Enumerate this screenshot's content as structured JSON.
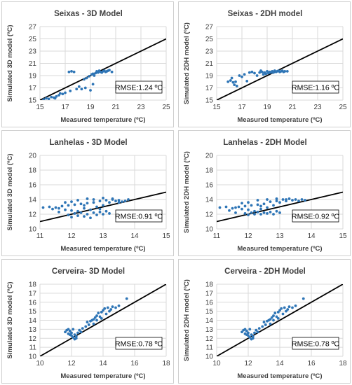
{
  "chart_data": [
    {
      "type": "scatter",
      "title": "Seixas - 3D Model",
      "xlabel": "Measured temperature (ºC)",
      "ylabel": "Simulated 3D model (ºC)",
      "xlim": [
        15,
        25
      ],
      "ylim": [
        15,
        27
      ],
      "xticks": [
        "15",
        "17",
        "19",
        "21",
        "23",
        "25"
      ],
      "yticks": [
        "15",
        "17",
        "19",
        "21",
        "23",
        "25",
        "27"
      ],
      "annotation": "RMSE:1.24 ºC",
      "line": [
        [
          15,
          15
        ],
        [
          25,
          25
        ]
      ],
      "points": [
        [
          15.3,
          15.1
        ],
        [
          15.5,
          15.3
        ],
        [
          15.7,
          15.2
        ],
        [
          15.9,
          15.5
        ],
        [
          16.1,
          15.4
        ],
        [
          16.3,
          15.6
        ],
        [
          16.5,
          15.8
        ],
        [
          16.2,
          15.3
        ],
        [
          16.8,
          16.0
        ],
        [
          17.0,
          16.2
        ],
        [
          16.6,
          16.1
        ],
        [
          17.3,
          19.6
        ],
        [
          17.5,
          19.7
        ],
        [
          17.7,
          19.6
        ],
        [
          17.4,
          16.5
        ],
        [
          17.9,
          16.8
        ],
        [
          18.1,
          17.2
        ],
        [
          18.3,
          16.8
        ],
        [
          18.6,
          17.0
        ],
        [
          18.5,
          18.4
        ],
        [
          18.7,
          18.6
        ],
        [
          18.9,
          18.9
        ],
        [
          19.1,
          19.2
        ],
        [
          19.0,
          16.6
        ],
        [
          19.2,
          17.6
        ],
        [
          19.3,
          19.0
        ],
        [
          19.4,
          19.4
        ],
        [
          19.6,
          19.5
        ],
        [
          19.8,
          19.6
        ],
        [
          20.0,
          19.7
        ],
        [
          19.7,
          19.8
        ],
        [
          19.9,
          19.5
        ],
        [
          20.1,
          19.8
        ],
        [
          20.3,
          19.7
        ],
        [
          20.5,
          19.9
        ],
        [
          20.7,
          19.6
        ],
        [
          19.5,
          19.7
        ],
        [
          20.2,
          19.6
        ],
        [
          19.2,
          19.3
        ],
        [
          20.4,
          19.8
        ]
      ]
    },
    {
      "type": "scatter",
      "title": "Seixas - 2DH model",
      "xlabel": "Measured temperature (ºC)",
      "ylabel": "Simulated 2DH model (ºC)",
      "xlim": [
        15,
        25
      ],
      "ylim": [
        15,
        27
      ],
      "xticks": [
        "15",
        "17",
        "19",
        "21",
        "23",
        "25"
      ],
      "yticks": [
        "15",
        "17",
        "19",
        "21",
        "23",
        "25",
        "27"
      ],
      "annotation": "RMSE:1.16 ºC",
      "line": [
        [
          15,
          15
        ],
        [
          25,
          25
        ]
      ],
      "points": [
        [
          15.9,
          18.0
        ],
        [
          16.1,
          18.2
        ],
        [
          16.3,
          17.9
        ],
        [
          16.5,
          18.0
        ],
        [
          16.2,
          18.6
        ],
        [
          16.4,
          17.5
        ],
        [
          16.6,
          17.3
        ],
        [
          16.8,
          19.0
        ],
        [
          17.0,
          18.8
        ],
        [
          17.2,
          19.2
        ],
        [
          17.4,
          18.1
        ],
        [
          17.6,
          19.5
        ],
        [
          17.8,
          19.6
        ],
        [
          18.0,
          19.4
        ],
        [
          18.2,
          19.0
        ],
        [
          18.4,
          19.5
        ],
        [
          18.6,
          19.6
        ],
        [
          18.8,
          19.5
        ],
        [
          19.0,
          19.7
        ],
        [
          19.2,
          19.6
        ],
        [
          19.4,
          19.7
        ],
        [
          19.6,
          19.8
        ],
        [
          19.8,
          19.7
        ],
        [
          20.0,
          19.6
        ],
        [
          20.2,
          19.8
        ],
        [
          20.4,
          19.7
        ],
        [
          20.6,
          19.7
        ],
        [
          19.1,
          19.4
        ],
        [
          19.3,
          19.5
        ],
        [
          19.7,
          19.6
        ],
        [
          19.9,
          19.8
        ],
        [
          18.9,
          19.3
        ],
        [
          18.5,
          19.8
        ],
        [
          18.7,
          19.2
        ],
        [
          19.5,
          19.5
        ],
        [
          20.1,
          19.7
        ],
        [
          20.3,
          19.6
        ]
      ]
    },
    {
      "type": "scatter",
      "title": "Lanhelas - 3D Model",
      "xlabel": "Measured temperature (ºC)",
      "ylabel": "Simulated 3D model (ºC)",
      "xlim": [
        11,
        15
      ],
      "ylim": [
        10,
        20
      ],
      "xticks": [
        "11",
        "12",
        "13",
        "14",
        "15"
      ],
      "yticks": [
        "10",
        "12",
        "14",
        "16",
        "18",
        "20"
      ],
      "annotation": "RMSE:0.91 ºC",
      "line": [
        [
          11,
          11
        ],
        [
          15,
          15
        ]
      ],
      "points": [
        [
          11.1,
          12.9
        ],
        [
          11.3,
          13.0
        ],
        [
          11.5,
          12.9
        ],
        [
          11.6,
          12.8
        ],
        [
          11.7,
          13.1
        ],
        [
          11.8,
          12.6
        ],
        [
          11.9,
          13.2
        ],
        [
          12.0,
          12.5
        ],
        [
          12.1,
          13.3
        ],
        [
          12.2,
          12.4
        ],
        [
          12.3,
          13.4
        ],
        [
          12.4,
          12.8
        ],
        [
          12.5,
          13.5
        ],
        [
          12.6,
          12.6
        ],
        [
          12.7,
          13.6
        ],
        [
          12.8,
          13.0
        ],
        [
          12.9,
          13.8
        ],
        [
          13.0,
          13.2
        ],
        [
          13.1,
          13.9
        ],
        [
          13.2,
          13.6
        ],
        [
          13.3,
          14.0
        ],
        [
          13.4,
          13.8
        ],
        [
          13.5,
          13.9
        ],
        [
          13.6,
          13.7
        ],
        [
          13.7,
          13.8
        ],
        [
          13.8,
          14.0
        ],
        [
          11.9,
          11.9
        ],
        [
          12.0,
          11.6
        ],
        [
          12.1,
          12.1
        ],
        [
          12.2,
          11.8
        ],
        [
          12.3,
          12.2
        ],
        [
          12.4,
          11.7
        ],
        [
          12.5,
          12.0
        ],
        [
          12.6,
          11.5
        ],
        [
          12.7,
          12.2
        ],
        [
          12.8,
          11.9
        ],
        [
          12.9,
          12.3
        ],
        [
          13.0,
          12.0
        ],
        [
          13.1,
          12.4
        ],
        [
          13.2,
          12.1
        ],
        [
          11.4,
          12.7
        ],
        [
          11.8,
          13.6
        ],
        [
          12.0,
          13.7
        ],
        [
          12.2,
          13.9
        ],
        [
          12.5,
          14.1
        ],
        [
          12.7,
          14.0
        ],
        [
          13.0,
          14.2
        ],
        [
          13.3,
          14.1
        ],
        [
          13.5,
          13.6
        ],
        [
          12.9,
          12.7
        ],
        [
          11.6,
          12.3
        ],
        [
          12.4,
          13.2
        ]
      ]
    },
    {
      "type": "scatter",
      "title": "Lanhelas - 2DH Model",
      "xlabel": "Measured temperature (ºC)",
      "ylabel": "Simulated 2DH model (ºC)",
      "xlim": [
        11,
        15
      ],
      "ylim": [
        10,
        20
      ],
      "xticks": [
        "11",
        "12",
        "13",
        "14",
        "15"
      ],
      "yticks": [
        "10",
        "12",
        "14",
        "16",
        "18",
        "20"
      ],
      "annotation": "RMSE:0.92 ºC",
      "line": [
        [
          11,
          11
        ],
        [
          15,
          15
        ]
      ],
      "points": [
        [
          11.1,
          12.9
        ],
        [
          11.3,
          13.0
        ],
        [
          11.5,
          12.8
        ],
        [
          11.6,
          12.9
        ],
        [
          11.7,
          13.0
        ],
        [
          11.8,
          12.7
        ],
        [
          11.9,
          13.1
        ],
        [
          12.0,
          12.6
        ],
        [
          12.1,
          13.2
        ],
        [
          12.2,
          12.4
        ],
        [
          12.3,
          13.3
        ],
        [
          12.4,
          12.7
        ],
        [
          12.5,
          13.4
        ],
        [
          12.6,
          12.9
        ],
        [
          12.7,
          13.7
        ],
        [
          12.8,
          13.2
        ],
        [
          12.9,
          13.8
        ],
        [
          13.0,
          13.6
        ],
        [
          13.1,
          14.0
        ],
        [
          13.2,
          13.8
        ],
        [
          13.3,
          14.1
        ],
        [
          13.4,
          13.9
        ],
        [
          13.5,
          14.0
        ],
        [
          13.6,
          13.8
        ],
        [
          13.7,
          14.0
        ],
        [
          13.8,
          13.9
        ],
        [
          11.9,
          12.1
        ],
        [
          12.0,
          11.9
        ],
        [
          12.1,
          12.2
        ],
        [
          12.2,
          12.0
        ],
        [
          12.3,
          12.3
        ],
        [
          12.4,
          12.0
        ],
        [
          12.5,
          12.2
        ],
        [
          12.6,
          12.1
        ],
        [
          12.7,
          12.3
        ],
        [
          12.8,
          12.0
        ],
        [
          12.9,
          12.4
        ],
        [
          13.0,
          12.2
        ],
        [
          11.4,
          12.5
        ],
        [
          11.8,
          13.5
        ],
        [
          12.0,
          13.6
        ],
        [
          12.3,
          13.9
        ],
        [
          12.6,
          14.0
        ],
        [
          12.9,
          14.1
        ],
        [
          13.2,
          14.0
        ],
        [
          11.6,
          12.2
        ],
        [
          12.4,
          13.1
        ]
      ]
    },
    {
      "type": "scatter",
      "title": "Cerveira- 3D Model",
      "xlabel": "Measured temperature (ºC)",
      "ylabel": "Simulated 3D model (ºC)",
      "xlim": [
        10,
        18
      ],
      "ylim": [
        10,
        18
      ],
      "xticks": [
        "10",
        "12",
        "14",
        "16",
        "18"
      ],
      "yticks": [
        "10",
        "11",
        "12",
        "13",
        "14",
        "15",
        "16",
        "17",
        "18"
      ],
      "annotation": "RMSE:0.78 ºC",
      "line": [
        [
          10,
          10
        ],
        [
          18,
          18
        ]
      ],
      "points": [
        [
          11.6,
          12.7
        ],
        [
          11.7,
          12.9
        ],
        [
          11.8,
          12.5
        ],
        [
          11.9,
          12.8
        ],
        [
          12.0,
          12.6
        ],
        [
          12.1,
          13.0
        ],
        [
          12.2,
          12.4
        ],
        [
          12.3,
          12.2
        ],
        [
          12.0,
          12.3
        ],
        [
          12.1,
          12.1
        ],
        [
          12.2,
          11.9
        ],
        [
          12.3,
          12.0
        ],
        [
          11.8,
          13.0
        ],
        [
          11.9,
          12.4
        ],
        [
          12.4,
          12.6
        ],
        [
          12.5,
          12.9
        ],
        [
          12.7,
          13.1
        ],
        [
          12.9,
          13.3
        ],
        [
          13.1,
          13.5
        ],
        [
          13.0,
          13.8
        ],
        [
          13.2,
          13.9
        ],
        [
          13.3,
          14.0
        ],
        [
          13.4,
          14.1
        ],
        [
          13.5,
          14.3
        ],
        [
          13.6,
          14.5
        ],
        [
          13.7,
          14.8
        ],
        [
          13.8,
          14.4
        ],
        [
          13.9,
          14.9
        ],
        [
          14.0,
          15.1
        ],
        [
          14.1,
          15.3
        ],
        [
          14.2,
          14.7
        ],
        [
          14.3,
          15.4
        ],
        [
          14.4,
          15.0
        ],
        [
          14.6,
          15.5
        ],
        [
          14.8,
          15.4
        ],
        [
          15.0,
          15.6
        ],
        [
          15.5,
          16.4
        ],
        [
          13.4,
          13.6
        ],
        [
          13.6,
          14.0
        ],
        [
          12.6,
          12.7
        ],
        [
          14.5,
          15.2
        ],
        [
          13.9,
          14.2
        ]
      ]
    },
    {
      "type": "scatter",
      "title": "Cerveira - 2DH Model",
      "xlabel": "Measured temperature (ºC)",
      "ylabel": "Simulated 2DH model (ºC)",
      "xlim": [
        10,
        18
      ],
      "ylim": [
        10,
        18
      ],
      "xticks": [
        "10",
        "12",
        "14",
        "16",
        "18"
      ],
      "yticks": [
        "10",
        "11",
        "12",
        "13",
        "14",
        "15",
        "16",
        "17",
        "18"
      ],
      "annotation": "RMSE:0.78 ºC",
      "line": [
        [
          10,
          10
        ],
        [
          18,
          18
        ]
      ],
      "points": [
        [
          11.6,
          12.7
        ],
        [
          11.7,
          12.9
        ],
        [
          11.8,
          12.5
        ],
        [
          11.9,
          12.8
        ],
        [
          12.0,
          12.6
        ],
        [
          12.1,
          13.0
        ],
        [
          12.2,
          12.4
        ],
        [
          12.3,
          12.2
        ],
        [
          12.0,
          12.3
        ],
        [
          12.1,
          12.1
        ],
        [
          12.2,
          11.9
        ],
        [
          12.3,
          12.0
        ],
        [
          11.8,
          13.0
        ],
        [
          11.9,
          12.4
        ],
        [
          12.4,
          12.6
        ],
        [
          12.5,
          12.9
        ],
        [
          12.7,
          13.1
        ],
        [
          12.9,
          13.3
        ],
        [
          13.1,
          13.5
        ],
        [
          13.0,
          13.8
        ],
        [
          13.2,
          13.9
        ],
        [
          13.3,
          14.0
        ],
        [
          13.4,
          14.1
        ],
        [
          13.5,
          14.3
        ],
        [
          13.6,
          14.5
        ],
        [
          13.7,
          14.8
        ],
        [
          13.8,
          14.4
        ],
        [
          13.9,
          14.9
        ],
        [
          14.0,
          15.1
        ],
        [
          14.1,
          15.3
        ],
        [
          14.2,
          14.7
        ],
        [
          14.3,
          15.4
        ],
        [
          14.4,
          15.0
        ],
        [
          14.6,
          15.5
        ],
        [
          14.8,
          15.4
        ],
        [
          15.0,
          15.6
        ],
        [
          15.5,
          16.4
        ],
        [
          13.4,
          13.6
        ],
        [
          13.6,
          14.0
        ],
        [
          12.6,
          12.7
        ],
        [
          14.5,
          15.2
        ],
        [
          13.9,
          14.2
        ]
      ]
    }
  ],
  "colors": {
    "point": "#2E75B6",
    "line": "#000000",
    "grid": "#d9d9d9",
    "text": "#404040"
  }
}
